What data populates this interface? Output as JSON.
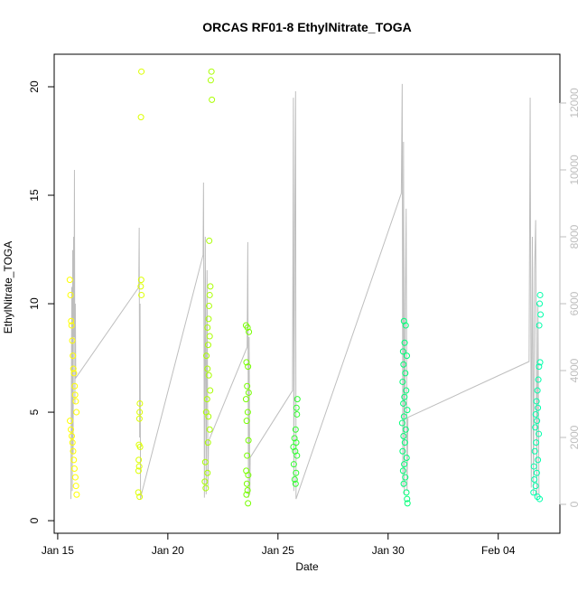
{
  "chart_data": {
    "type": "scatter",
    "title": "ORCAS RF01-8 EthylNitrate_TOGA",
    "xlabel": "Date",
    "ylabel": "EthylNitrate_TOGA",
    "xlim": [
      14.84,
      37.8
    ],
    "xticks": [
      {
        "value": 15,
        "label": "Jan 15"
      },
      {
        "value": 20,
        "label": "Jan 20"
      },
      {
        "value": 25,
        "label": "Jan 25"
      },
      {
        "value": 30,
        "label": "Jan 30"
      },
      {
        "value": 35,
        "label": "Feb 04"
      }
    ],
    "ylim": [
      -0.58,
      21.5
    ],
    "yticks": [
      0,
      5,
      10,
      15,
      20
    ],
    "y2lim": [
      -865,
      13459
    ],
    "y2ticks": [
      0,
      2000,
      4000,
      6000,
      8000,
      10000,
      12000
    ],
    "series": [
      {
        "color": "#ffff00",
        "x": [
          15.55,
          15.58,
          15.61,
          15.63,
          15.66,
          15.69,
          15.71,
          15.74,
          15.77,
          15.79,
          15.82,
          15.85,
          15.56,
          15.6,
          15.64,
          15.67,
          15.7,
          15.73,
          15.76,
          15.8,
          15.83,
          15.86
        ],
        "values": [
          11.1,
          10.4,
          9.2,
          9.0,
          8.3,
          7.6,
          7.0,
          6.8,
          6.2,
          5.8,
          5.5,
          5.0,
          4.6,
          4.2,
          3.9,
          3.6,
          3.2,
          2.8,
          2.4,
          2.0,
          1.6,
          1.2
        ]
      },
      {
        "color": "#ddff00",
        "x": [
          18.8,
          18.78,
          18.79,
          18.77,
          18.8,
          18.73,
          18.72,
          18.71,
          18.69,
          18.74,
          18.68,
          18.7,
          18.67,
          18.66,
          18.72
        ],
        "values": [
          20.7,
          18.6,
          11.1,
          10.8,
          10.4,
          5.4,
          5.0,
          4.7,
          3.5,
          3.4,
          2.8,
          2.5,
          2.3,
          1.3,
          1.1
        ]
      },
      {
        "color": "#aaff00",
        "x": [
          21.98,
          21.95,
          22.0,
          21.88,
          21.93,
          21.9,
          21.87,
          21.85,
          21.8,
          21.9,
          21.83,
          21.75,
          21.8,
          21.86,
          21.92,
          21.78,
          21.74,
          21.84,
          21.9,
          21.82,
          21.7,
          21.8,
          21.68,
          21.72
        ],
        "values": [
          20.7,
          20.3,
          19.4,
          12.9,
          10.8,
          10.4,
          9.9,
          9.3,
          8.9,
          8.5,
          8.1,
          7.6,
          7.0,
          6.7,
          6.0,
          5.6,
          5.0,
          4.8,
          4.2,
          3.6,
          2.7,
          2.2,
          1.8,
          1.5
        ]
      },
      {
        "color": "#77ff00",
        "x": [
          23.55,
          23.62,
          23.68,
          23.57,
          23.64,
          23.6,
          23.67,
          23.55,
          23.63,
          23.58,
          23.66,
          23.6,
          23.56,
          23.65,
          23.59,
          23.62,
          23.57,
          23.64
        ],
        "values": [
          9.0,
          8.9,
          8.7,
          7.3,
          7.1,
          6.2,
          5.9,
          5.6,
          5.0,
          4.6,
          3.7,
          3.0,
          2.3,
          2.1,
          1.7,
          1.4,
          1.2,
          0.8
        ]
      },
      {
        "color": "#33ff33",
        "x": [
          25.88,
          25.84,
          25.86,
          25.8,
          25.75,
          25.83,
          25.7,
          25.78,
          25.86,
          25.72,
          25.82,
          25.76,
          25.8
        ],
        "values": [
          5.6,
          5.2,
          4.9,
          4.2,
          3.8,
          3.6,
          3.4,
          3.2,
          3.0,
          2.6,
          2.2,
          1.9,
          1.7
        ]
      },
      {
        "color": "#00ff77",
        "x": [
          30.72,
          30.8,
          30.75,
          30.68,
          30.85,
          30.7,
          30.78,
          30.66,
          30.82,
          30.74,
          30.69,
          30.87,
          30.72,
          30.64,
          30.8,
          30.7,
          30.76,
          30.66,
          30.84,
          30.73,
          30.68,
          30.78,
          30.71,
          30.83,
          30.86,
          30.88
        ],
        "values": [
          9.2,
          9.0,
          8.2,
          7.8,
          7.6,
          7.2,
          6.8,
          6.4,
          6.0,
          5.7,
          5.4,
          5.1,
          4.8,
          4.5,
          4.2,
          3.9,
          3.6,
          3.2,
          2.9,
          2.6,
          2.3,
          2.0,
          1.7,
          1.3,
          1.0,
          0.8
        ]
      },
      {
        "color": "#00ffaa",
        "x": [
          36.9,
          36.88,
          36.92,
          36.86,
          36.9,
          36.85,
          36.82,
          36.78,
          36.74,
          36.8,
          36.7,
          36.76,
          36.68,
          36.84,
          36.72,
          36.66,
          36.8,
          36.62,
          36.75,
          36.64,
          36.7,
          36.6,
          36.78,
          36.88
        ],
        "values": [
          10.4,
          10.0,
          9.5,
          9.0,
          7.3,
          7.1,
          6.5,
          6.0,
          5.5,
          5.2,
          4.9,
          4.6,
          4.3,
          4.0,
          3.6,
          3.2,
          2.8,
          2.5,
          2.2,
          1.9,
          1.6,
          1.3,
          1.1,
          1.0
        ]
      },
      {
        "type": "line",
        "axis": "y2",
        "color": "#bebebe",
        "x": [
          15.6,
          15.64,
          15.66,
          15.68,
          15.7,
          15.72,
          15.74,
          15.76,
          15.78,
          15.8,
          15.82,
          18.68,
          18.7,
          18.72,
          18.74,
          18.76,
          18.8,
          21.6,
          21.62,
          21.66,
          21.7,
          21.74,
          21.78,
          21.82,
          21.85,
          23.6,
          23.63,
          23.66,
          23.69,
          23.72,
          23.74,
          25.66,
          25.7,
          25.72,
          25.76,
          25.8,
          25.82,
          30.6,
          30.64,
          30.67,
          30.7,
          30.74,
          30.78,
          30.82,
          30.86,
          30.9,
          36.4,
          36.45,
          36.5,
          36.55,
          36.6,
          36.65,
          36.7,
          36.75,
          36.8,
          36.85
        ],
        "values": [
          160,
          6500,
          400,
          7600,
          1500,
          8000,
          5000,
          10000,
          3000,
          6000,
          3780,
          6490,
          8270,
          2000,
          6000,
          160,
          300,
          7460,
          9620,
          200,
          8000,
          300,
          7000,
          500,
          1890,
          4700,
          7840,
          200,
          5000,
          300,
          1400,
          3400,
          12160,
          400,
          8000,
          12350,
          160,
          9300,
          12570,
          500,
          10840,
          300,
          6000,
          8840,
          400,
          2600,
          4270,
          12160,
          500,
          8000,
          300,
          7000,
          8500,
          200,
          6000,
          300
        ]
      }
    ]
  }
}
